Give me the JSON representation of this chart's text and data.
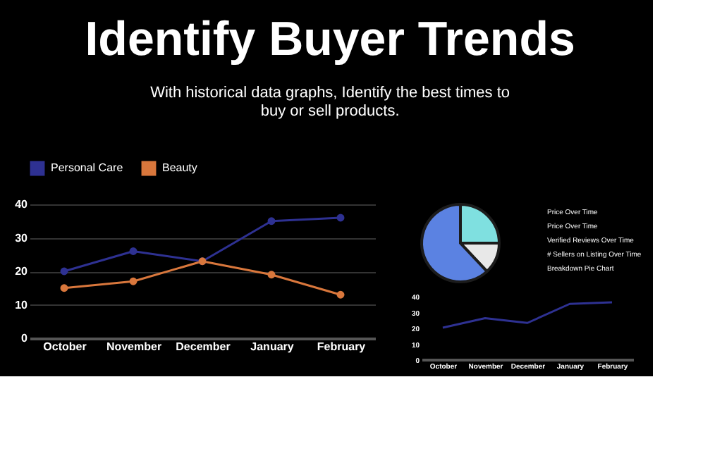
{
  "chart_data": [
    {
      "type": "line",
      "title": "Identify Buyer Trends",
      "subtitle": "With historical data graphs, Identify the best times to buy or sell products.",
      "categories": [
        "October",
        "November",
        "December",
        "January",
        "February"
      ],
      "series": [
        {
          "name": "Personal Care",
          "color": "#2e3192",
          "values": [
            20,
            26,
            23,
            35,
            36
          ]
        },
        {
          "name": "Beauty",
          "color": "#d9773c",
          "values": [
            15,
            17,
            23,
            19,
            13
          ]
        }
      ],
      "ylim": [
        0,
        40
      ],
      "yticks": [
        0,
        10,
        20,
        30,
        40
      ],
      "grid": "y",
      "legend": "top",
      "marker": "circle"
    },
    {
      "type": "pie",
      "categories": [
        null,
        null,
        null
      ],
      "values": [
        25,
        13,
        62
      ],
      "colors": [
        "#7fe0e0",
        "#e8e8e8",
        "#5b82e2"
      ]
    },
    {
      "type": "other",
      "annotations": [
        "Price Over Time",
        "Price Over Time",
        "Verified Reviews Over Time",
        "# Sellers on Listing Over Time",
        "Breakdown Pie Chart"
      ]
    },
    {
      "type": "line",
      "categories": [
        "October",
        "November",
        "December",
        "January",
        "February"
      ],
      "series": [
        {
          "color": "#2e3192",
          "values": [
            20,
            26,
            23,
            35,
            36
          ]
        }
      ],
      "ylim": [
        0,
        40
      ],
      "yticks": [
        0,
        10,
        20,
        30,
        40
      ],
      "grid": false,
      "marker": "none"
    }
  ]
}
